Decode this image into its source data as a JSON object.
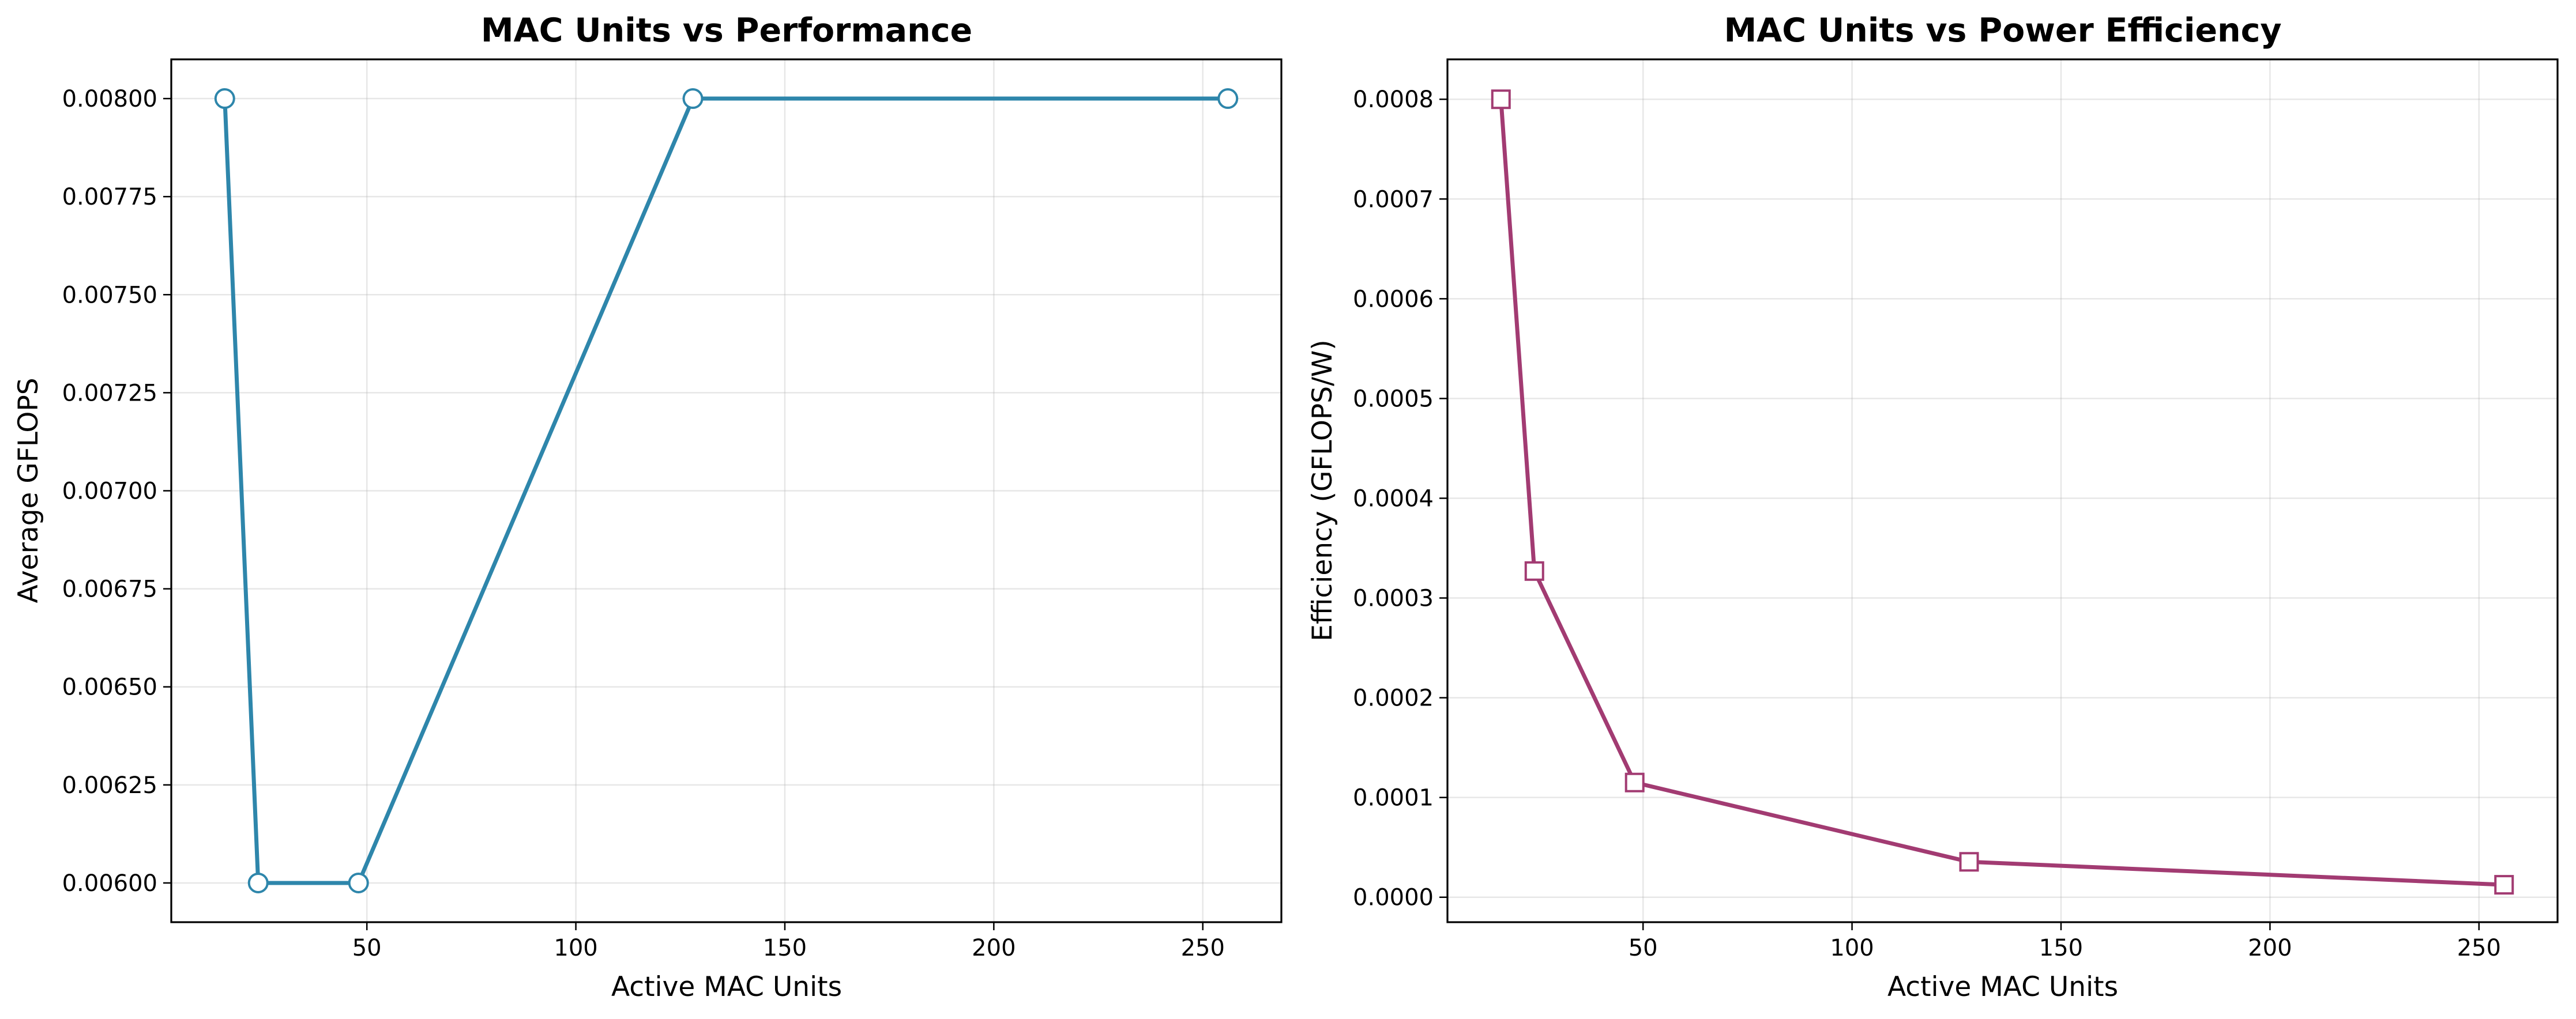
{
  "chart_data": [
    {
      "type": "line",
      "title": "MAC Units vs Performance",
      "xlabel": "Active MAC Units",
      "ylabel": "Average GFLOPS",
      "xlim": [
        3.2,
        268.8
      ],
      "ylim": [
        0.0059,
        0.0081
      ],
      "xticks": [
        50,
        100,
        150,
        200,
        250
      ],
      "xtick_labels": [
        "50",
        "100",
        "150",
        "200",
        "250"
      ],
      "yticks": [
        0.006,
        0.00625,
        0.0065,
        0.00675,
        0.007,
        0.00725,
        0.0075,
        0.00775,
        0.008
      ],
      "ytick_labels": [
        "0.00600",
        "0.00625",
        "0.00650",
        "0.00675",
        "0.00700",
        "0.00725",
        "0.00750",
        "0.00775",
        "0.00800"
      ],
      "grid": true,
      "marker": "circle",
      "color": "#2e86ab",
      "x": [
        16,
        24,
        48,
        128,
        256
      ],
      "series": [
        {
          "values": [
            0.008,
            0.006,
            0.006,
            0.008,
            0.008
          ]
        }
      ]
    },
    {
      "type": "line",
      "title": "MAC Units vs Power Efficiency",
      "xlabel": "Active MAC Units",
      "ylabel": "Efficiency (GFLOPS/W)",
      "xlim": [
        3.2,
        268.8
      ],
      "ylim": [
        -2.5e-05,
        0.00084
      ],
      "xticks": [
        50,
        100,
        150,
        200,
        250
      ],
      "xtick_labels": [
        "50",
        "100",
        "150",
        "200",
        "250"
      ],
      "yticks": [
        0,
        0.0001,
        0.0002,
        0.0003,
        0.0004,
        0.0005,
        0.0006,
        0.0007,
        0.0008
      ],
      "ytick_labels": [
        "0.0000",
        "0.0001",
        "0.0002",
        "0.0003",
        "0.0004",
        "0.0005",
        "0.0006",
        "0.0007",
        "0.0008"
      ],
      "grid": true,
      "marker": "square",
      "color": "#a23b72",
      "x": [
        16,
        24,
        48,
        128,
        256
      ],
      "series": [
        {
          "values": [
            0.0008,
            0.000327,
            0.000115,
            3.55e-05,
            1.25e-05
          ]
        }
      ]
    }
  ]
}
